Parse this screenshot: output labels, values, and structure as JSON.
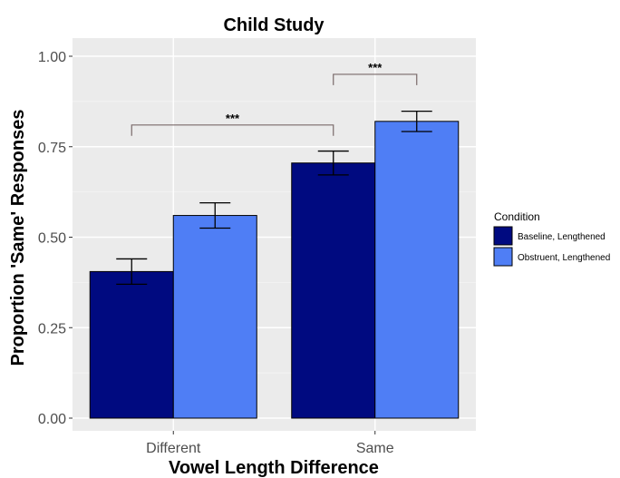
{
  "chart_data": {
    "type": "bar",
    "title": "Child Study",
    "xlabel": "Vowel Length Difference",
    "ylabel": "Proportion 'Same' Responses",
    "categories": [
      "Different",
      "Same"
    ],
    "ylim": [
      0,
      1.0
    ],
    "yticks": [
      "0.00",
      "0.25",
      "0.50",
      "0.75",
      "1.00"
    ],
    "grid": true,
    "legend": {
      "title": "Condition",
      "placement": "right"
    },
    "series": [
      {
        "name": "Baseline, Lengthened",
        "color": "#000a80",
        "values": [
          0.405,
          0.705
        ],
        "err_low": [
          0.37,
          0.672
        ],
        "err_high": [
          0.44,
          0.738
        ]
      },
      {
        "name": "Obstruent, Lengthened",
        "color": "#4f7ef5",
        "values": [
          0.56,
          0.82
        ],
        "err_low": [
          0.525,
          0.792
        ],
        "err_high": [
          0.595,
          0.848
        ]
      }
    ],
    "annotations": [
      {
        "label": "***",
        "from": {
          "category": 0,
          "series": 0
        },
        "to": {
          "category": 1,
          "series": 0
        },
        "y": 0.81,
        "drop": 0.03
      },
      {
        "label": "***",
        "from": {
          "category": 1,
          "series": 0
        },
        "to": {
          "category": 1,
          "series": 1
        },
        "y": 0.95,
        "drop": 0.03
      }
    ]
  }
}
